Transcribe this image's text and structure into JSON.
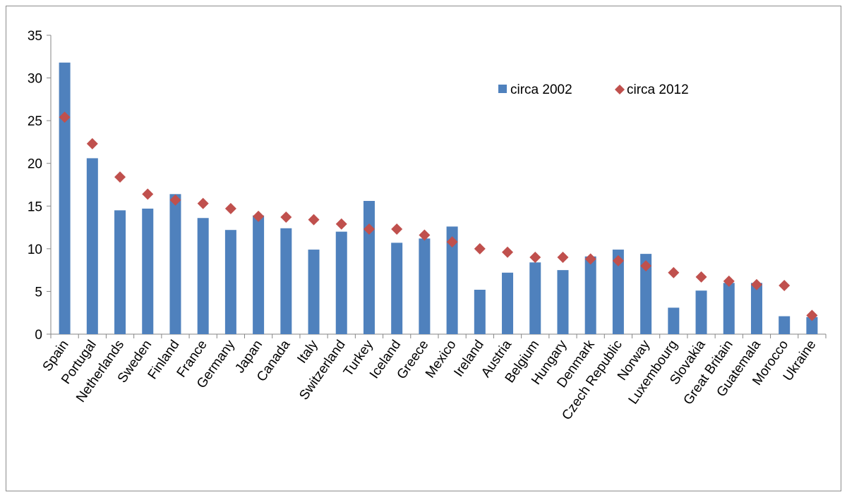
{
  "chart_data": {
    "type": "bar",
    "title": "",
    "xlabel": "",
    "ylabel": "",
    "ylim": [
      0,
      35
    ],
    "yticks": [
      0,
      5,
      10,
      15,
      20,
      25,
      30,
      35
    ],
    "grid": false,
    "legend_position": "top-right",
    "categories": [
      "Spain",
      "Portugal",
      "Netherlands",
      "Sweden",
      "Finland",
      "France",
      "Germany",
      "Japan",
      "Canada",
      "Italy",
      "Switzerland",
      "Turkey",
      "Iceland",
      "Greece",
      "Mexico",
      "Ireland",
      "Austria",
      "Belgium",
      "Hungary",
      "Denmark",
      "Czech Republic",
      "Norway",
      "Luxembourg",
      "Slovakia",
      "Great Britain",
      "Guatemala",
      "Morocco",
      "Ukraine"
    ],
    "series": [
      {
        "name": "circa 2002",
        "kind": "bar",
        "color": "#4F81BD",
        "values": [
          31.8,
          20.6,
          14.5,
          14.7,
          16.4,
          13.6,
          12.2,
          13.9,
          12.4,
          9.9,
          12.0,
          15.6,
          10.7,
          11.2,
          12.6,
          5.2,
          7.2,
          8.4,
          7.5,
          9.1,
          9.9,
          9.4,
          3.1,
          5.1,
          6.0,
          6.0,
          2.1,
          2.0
        ]
      },
      {
        "name": "circa 2012",
        "kind": "marker",
        "marker": "diamond",
        "color": "#C0504D",
        "values": [
          25.4,
          22.3,
          18.4,
          16.4,
          15.7,
          15.3,
          14.7,
          13.8,
          13.7,
          13.4,
          12.9,
          12.3,
          12.3,
          11.6,
          10.8,
          10.0,
          9.6,
          9.0,
          9.0,
          8.8,
          8.6,
          8.0,
          7.2,
          6.7,
          6.2,
          5.8,
          5.7,
          2.2
        ]
      }
    ]
  }
}
